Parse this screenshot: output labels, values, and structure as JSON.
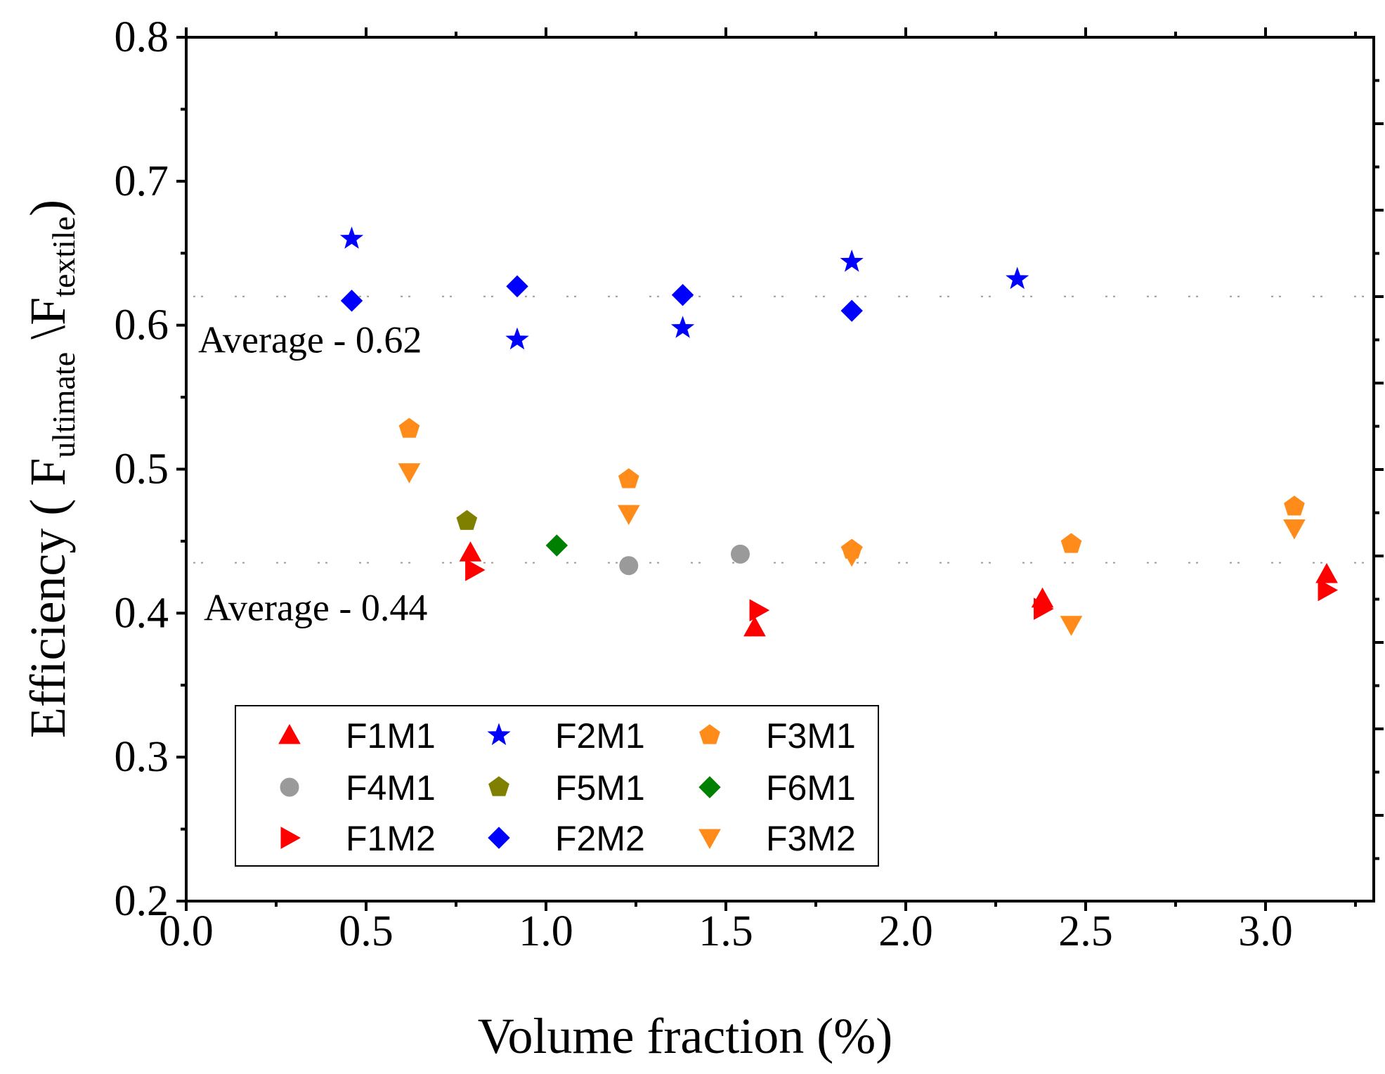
{
  "chart_data": {
    "type": "scatter",
    "xlabel": "Volume fraction (%)",
    "ylabel": {
      "prefix": "Efficiency ( F",
      "sub1": "ultimate",
      "mid": " \\F",
      "sub2": "textile",
      "suffix": ")"
    },
    "xlim": [
      0,
      3.3
    ],
    "ylim": [
      0.2,
      0.8
    ],
    "xticks": [
      "0.0",
      "0.5",
      "1.0",
      "1.5",
      "2.0",
      "2.5",
      "3.0"
    ],
    "xtick_values": [
      0,
      0.5,
      1.0,
      1.5,
      2.0,
      2.5,
      3.0
    ],
    "yticks": [
      "0.2",
      "0.3",
      "0.4",
      "0.5",
      "0.6",
      "0.7",
      "0.8"
    ],
    "ytick_values": [
      0.2,
      0.3,
      0.4,
      0.5,
      0.6,
      0.7,
      0.8
    ],
    "reference_lines": [
      {
        "y": 0.62,
        "label": "Average - 0.62"
      },
      {
        "y": 0.435,
        "label": "Average - 0.44"
      }
    ],
    "legend": {
      "placement": "bottom-left",
      "columns": 3
    },
    "series": [
      {
        "name": "F1M1",
        "marker": "triangle-up",
        "color": "#ff0000",
        "x": [
          0.79,
          1.58,
          2.38,
          3.17
        ],
        "y": [
          0.442,
          0.39,
          0.41,
          0.427
        ]
      },
      {
        "name": "F2M1",
        "marker": "star",
        "color": "#0000ff",
        "x": [
          0.46,
          0.92,
          1.38,
          1.85,
          2.31
        ],
        "y": [
          0.66,
          0.59,
          0.598,
          0.644,
          0.632
        ]
      },
      {
        "name": "F3M1",
        "marker": "pentagon",
        "color": "#ff8c1a",
        "x": [
          0.62,
          1.23,
          1.85,
          2.46,
          3.08
        ],
        "y": [
          0.528,
          0.493,
          0.444,
          0.448,
          0.474
        ]
      },
      {
        "name": "F4M1",
        "marker": "circle",
        "color": "#9a9a9a",
        "x": [
          1.23,
          1.54
        ],
        "y": [
          0.433,
          0.441
        ]
      },
      {
        "name": "F5M1",
        "marker": "pentagon",
        "color": "#808000",
        "x": [
          0.78
        ],
        "y": [
          0.464
        ]
      },
      {
        "name": "F6M1",
        "marker": "diamond",
        "color": "#008000",
        "x": [
          1.03
        ],
        "y": [
          0.447
        ]
      },
      {
        "name": "F1M2",
        "marker": "triangle-right",
        "color": "#ff0000",
        "x": [
          0.8,
          1.59,
          2.38,
          3.17
        ],
        "y": [
          0.43,
          0.402,
          0.403,
          0.416
        ]
      },
      {
        "name": "F2M2",
        "marker": "diamond",
        "color": "#0000ff",
        "x": [
          0.46,
          0.92,
          1.38,
          1.85
        ],
        "y": [
          0.617,
          0.627,
          0.621,
          0.61
        ]
      },
      {
        "name": "F3M2",
        "marker": "triangle-down",
        "color": "#ff8c1a",
        "x": [
          0.62,
          1.23,
          1.85,
          2.46,
          3.08
        ],
        "y": [
          0.498,
          0.469,
          0.44,
          0.392,
          0.459
        ]
      }
    ]
  }
}
